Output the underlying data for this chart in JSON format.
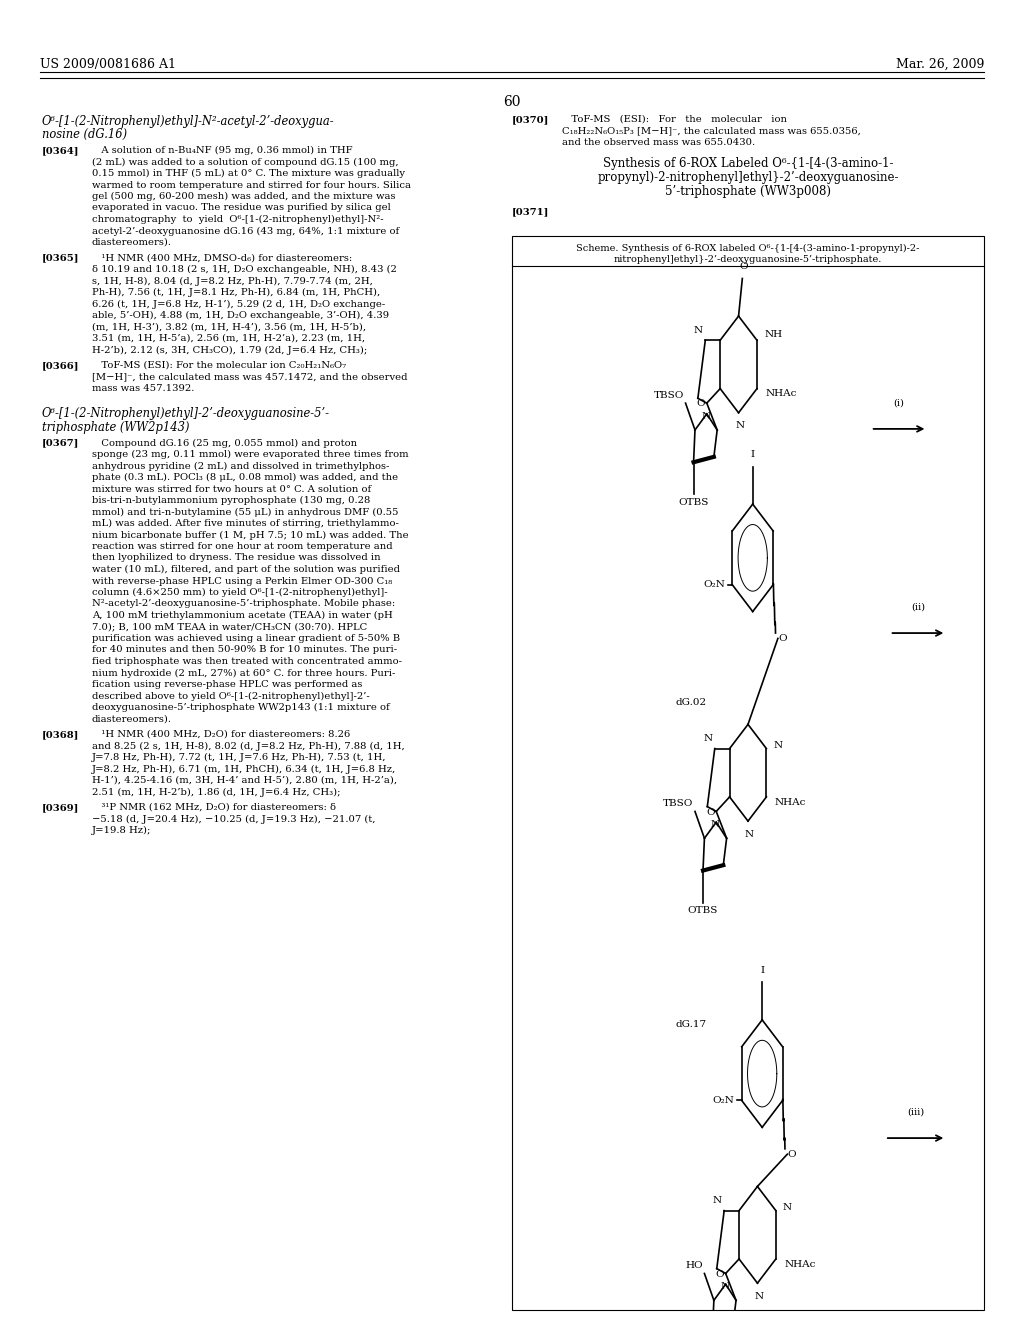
{
  "page_header_left": "US 2009/0081686 A1",
  "page_header_right": "Mar. 26, 2009",
  "page_number": "60",
  "background_color": "#ffffff"
}
